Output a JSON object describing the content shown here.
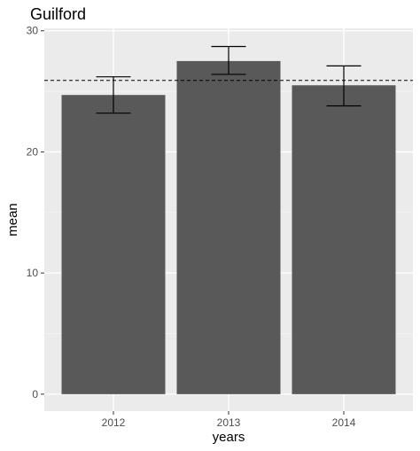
{
  "chart_data": {
    "type": "bar",
    "title": "Guilford",
    "xlabel": "years",
    "ylabel": "mean",
    "categories": [
      "2012",
      "2013",
      "2014"
    ],
    "values": [
      24.7,
      27.5,
      25.5
    ],
    "error_low": [
      23.2,
      26.4,
      23.8
    ],
    "error_high": [
      26.2,
      28.7,
      27.1
    ],
    "reference_line": 25.9,
    "ylim": [
      -1.4,
      30.2
    ],
    "yticks": [
      0,
      10,
      20,
      30
    ],
    "grid": true,
    "colors": {
      "bar": "#595959",
      "panel": "#ebebeb",
      "grid_major": "#ffffff",
      "grid_minor": "#f5f5f5",
      "errorbar": "#000000",
      "reference_line": "#000000"
    }
  }
}
